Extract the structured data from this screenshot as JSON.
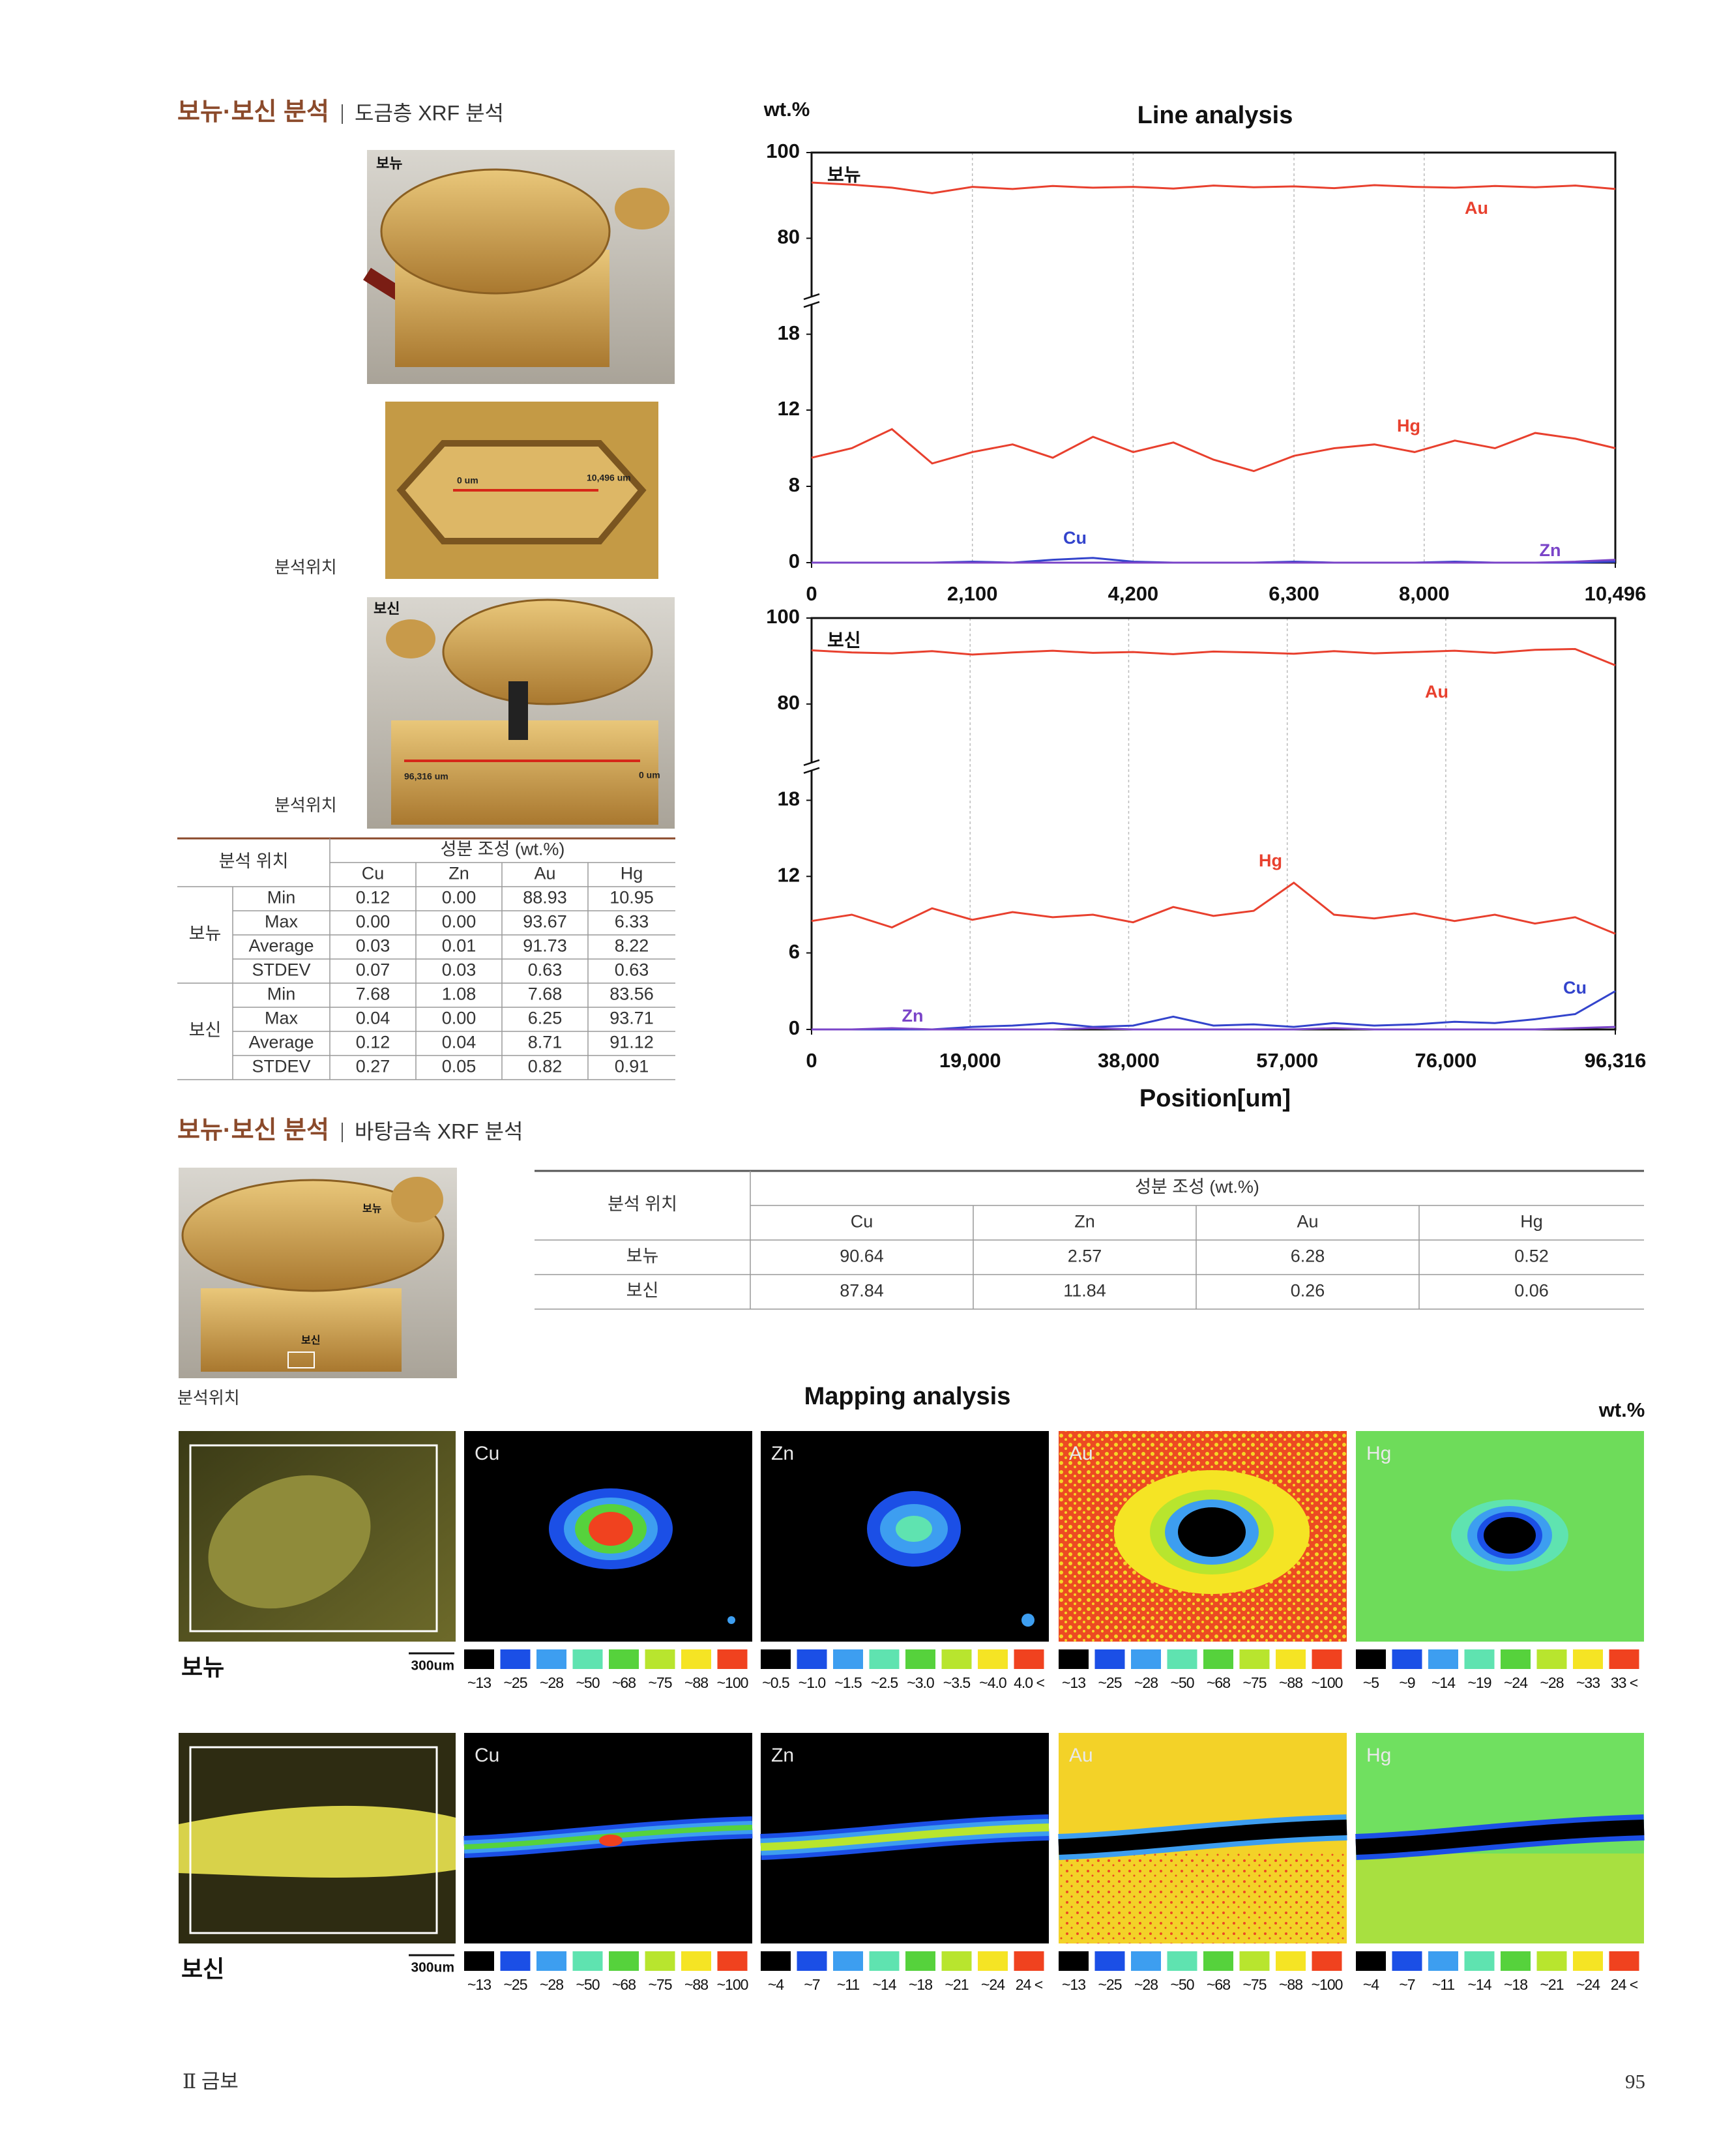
{
  "sections": [
    {
      "title": "보뉴·보신 분석",
      "subtitle": "도금층 XRF 분석"
    },
    {
      "title": "보뉴·보신 분석",
      "subtitle": "바탕금속 XRF 분석"
    }
  ],
  "photos": {
    "top": {
      "label": "보뉴"
    },
    "detail": {
      "start": "0 um",
      "end": "10,496 um",
      "caption": "분석위치"
    },
    "side": {
      "label": "보신",
      "start": "96,316 um",
      "end": "0 um",
      "caption": "분석위치"
    },
    "base": {
      "label_top": "보뉴",
      "label_bottom": "보신",
      "caption": "분석위치"
    }
  },
  "table1": {
    "headers": [
      "분석 위치",
      "성분 조성 (wt.%)"
    ],
    "columns": [
      "Cu",
      "Zn",
      "Au",
      "Hg"
    ],
    "groups": [
      {
        "name": "보뉴",
        "rows": [
          [
            "Min",
            "0.12",
            "0.00",
            "88.93",
            "10.95"
          ],
          [
            "Max",
            "0.00",
            "0.00",
            "93.67",
            "6.33"
          ],
          [
            "Average",
            "0.03",
            "0.01",
            "91.73",
            "8.22"
          ],
          [
            "STDEV",
            "0.07",
            "0.03",
            "0.63",
            "0.63"
          ]
        ]
      },
      {
        "name": "보신",
        "rows": [
          [
            "Min",
            "7.68",
            "1.08",
            "7.68",
            "83.56"
          ],
          [
            "Max",
            "0.04",
            "0.00",
            "6.25",
            "93.71"
          ],
          [
            "Average",
            "0.12",
            "0.04",
            "8.71",
            "91.12"
          ],
          [
            "STDEV",
            "0.27",
            "0.05",
            "0.82",
            "0.91"
          ]
        ]
      }
    ]
  },
  "table2": {
    "headers": [
      "분석 위치",
      "성분 조성 (wt.%)"
    ],
    "columns": [
      "Cu",
      "Zn",
      "Au",
      "Hg"
    ],
    "rows": [
      [
        "보뉴",
        "90.64",
        "2.57",
        "6.28",
        "0.52"
      ],
      [
        "보신",
        "87.84",
        "11.84",
        "0.26",
        "0.06"
      ]
    ]
  },
  "chart_data": [
    {
      "type": "line",
      "title": "Line analysis",
      "y_label": "wt.%",
      "subtitle": "보뉴",
      "grid": true,
      "xlim": [
        0,
        10496
      ],
      "xticks": [
        0,
        {
          "value": 2100,
          "label": "2,100"
        },
        {
          "value": 4200,
          "label": "4,200"
        },
        {
          "value": 6300,
          "label": "6,300"
        },
        {
          "value": 8000,
          "label": "8,000"
        },
        {
          "value": 10496,
          "label": "10,496"
        }
      ],
      "ylim": [
        0,
        100
      ],
      "yticks": [
        0,
        8,
        12,
        18,
        80,
        100
      ],
      "x": [
        0,
        525,
        1050,
        1575,
        2100,
        2625,
        3150,
        3675,
        4200,
        4725,
        5250,
        5775,
        6300,
        6825,
        7350,
        7875,
        8400,
        8925,
        9450,
        9975,
        10496
      ],
      "series": [
        {
          "name": "Au",
          "color": "#e8402e",
          "values": [
            93,
            92.5,
            91.8,
            90.5,
            92,
            91.5,
            92.2,
            91.8,
            92,
            91.6,
            92.3,
            91.9,
            92.1,
            91.7,
            92.4,
            92,
            91.8,
            92.2,
            91.9,
            92.3,
            91.5
          ]
        },
        {
          "name": "Hg",
          "color": "#e8402e",
          "values": [
            9.5,
            10,
            11,
            9.2,
            9.8,
            10.2,
            9.5,
            10.6,
            9.8,
            10.3,
            9.4,
            8.8,
            9.6,
            10,
            10.2,
            9.8,
            10.4,
            10,
            10.8,
            10.5,
            10
          ]
        },
        {
          "name": "Cu",
          "color": "#3344cc",
          "values": [
            0,
            0,
            0,
            0,
            0.1,
            0,
            0.3,
            0.5,
            0.1,
            0,
            0,
            0,
            0.1,
            0,
            0,
            0,
            0.1,
            0,
            0,
            0,
            0.1
          ]
        },
        {
          "name": "Zn",
          "color": "#7a44c8",
          "values": [
            0,
            0,
            0,
            0,
            0,
            0,
            0,
            0,
            0,
            0,
            0,
            0,
            0,
            0,
            0,
            0,
            0,
            0,
            0,
            0.1,
            0.3
          ]
        }
      ]
    },
    {
      "type": "line",
      "x_label": "Position[um]",
      "subtitle": "보신",
      "grid": true,
      "xlim": [
        0,
        96316
      ],
      "xticks": [
        0,
        {
          "value": 19000,
          "label": "19,000"
        },
        {
          "value": 38000,
          "label": "38,000"
        },
        {
          "value": 57000,
          "label": "57,000"
        },
        {
          "value": 76000,
          "label": "76,000"
        },
        {
          "value": 96316,
          "label": "96,316"
        }
      ],
      "ylim": [
        0,
        100
      ],
      "yticks": [
        0,
        6,
        12,
        18,
        80,
        100
      ],
      "x": [
        0,
        4816,
        9632,
        14447,
        19263,
        24079,
        28895,
        33711,
        38526,
        43342,
        48158,
        52974,
        57790,
        62605,
        67421,
        72237,
        77053,
        81869,
        86684,
        91500,
        96316
      ],
      "series": [
        {
          "name": "Au",
          "color": "#e8402e",
          "values": [
            92.5,
            92,
            91.8,
            92.3,
            91.5,
            92,
            92.4,
            91.9,
            92.1,
            91.6,
            92.2,
            92,
            91.7,
            92.3,
            91.8,
            92.1,
            92.4,
            91.9,
            92.6,
            92.8,
            89
          ]
        },
        {
          "name": "Hg",
          "color": "#e8402e",
          "values": [
            8.5,
            9,
            8,
            9.5,
            8.6,
            9.2,
            8.8,
            9,
            8.4,
            9.6,
            8.9,
            9.3,
            11.5,
            9,
            8.7,
            9.1,
            8.5,
            9,
            8.3,
            8.8,
            7.5
          ]
        },
        {
          "name": "Cu",
          "color": "#3344cc",
          "values": [
            0,
            0,
            0,
            0,
            0.2,
            0.3,
            0.5,
            0.2,
            0.3,
            1,
            0.3,
            0.4,
            0.2,
            0.5,
            0.3,
            0.4,
            0.6,
            0.5,
            0.8,
            1.2,
            3
          ]
        },
        {
          "name": "Zn",
          "color": "#7a44c8",
          "values": [
            0,
            0,
            0.1,
            0,
            0,
            0,
            0,
            0.1,
            0,
            0,
            0,
            0,
            0,
            0.1,
            0,
            0,
            0,
            0,
            0,
            0.1,
            0.2
          ]
        }
      ]
    }
  ],
  "mapping": {
    "title": "Mapping analysis",
    "unit": "wt.%",
    "scale_bar": "300um",
    "rows": [
      {
        "label": "보뉴",
        "panels": [
          {
            "element": "Cu",
            "scale": [
              "~13",
              "~25",
              "~28",
              "~50",
              "~68",
              "~75",
              "~88",
              "~100"
            ]
          },
          {
            "element": "Zn",
            "scale": [
              "~0.5",
              "~1.0",
              "~1.5",
              "~2.5",
              "~3.0",
              "~3.5",
              "~4.0",
              "4.0 <"
            ]
          },
          {
            "element": "Au",
            "scale": [
              "~13",
              "~25",
              "~28",
              "~50",
              "~68",
              "~75",
              "~88",
              "~100"
            ]
          },
          {
            "element": "Hg",
            "scale": [
              "~5",
              "~9",
              "~14",
              "~19",
              "~24",
              "~28",
              "~33",
              "33 <"
            ]
          }
        ]
      },
      {
        "label": "보신",
        "panels": [
          {
            "element": "Cu",
            "scale": [
              "~13",
              "~25",
              "~28",
              "~50",
              "~68",
              "~75",
              "~88",
              "~100"
            ]
          },
          {
            "element": "Zn",
            "scale": [
              "~4",
              "~7",
              "~11",
              "~14",
              "~18",
              "~21",
              "~24",
              "24 <"
            ]
          },
          {
            "element": "Au",
            "scale": [
              "~13",
              "~25",
              "~28",
              "~50",
              "~68",
              "~75",
              "~88",
              "~100"
            ]
          },
          {
            "element": "Hg",
            "scale": [
              "~4",
              "~7",
              "~11",
              "~14",
              "~18",
              "~21",
              "~24",
              "24 <"
            ]
          }
        ]
      }
    ]
  },
  "footer": {
    "left": "Ⅱ 금보",
    "page": "95"
  }
}
